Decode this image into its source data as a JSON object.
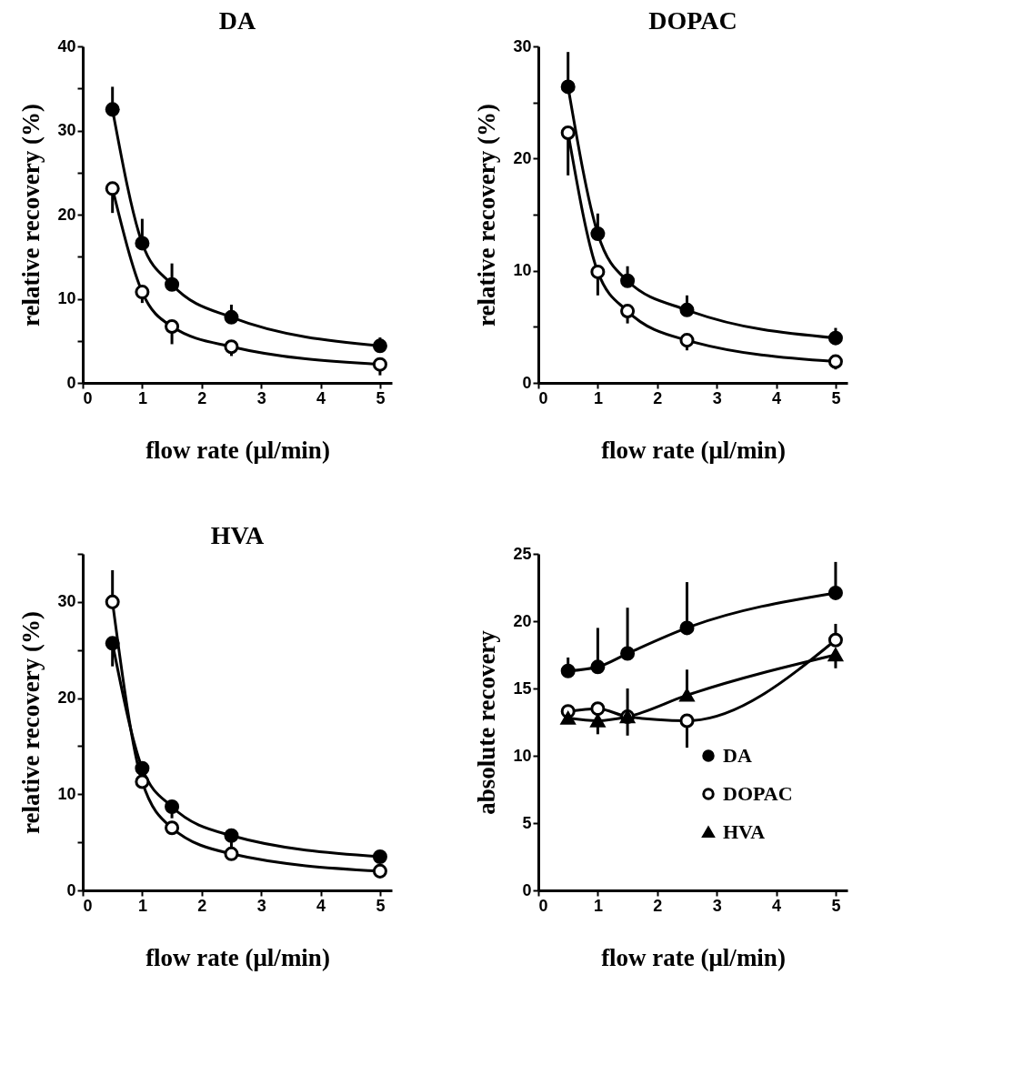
{
  "chart_data": [
    {
      "type": "line",
      "title": "DA",
      "xlabel": "flow rate (μl/min)",
      "ylabel": "relative recovery (%)",
      "xlim": [
        0,
        5.2
      ],
      "xticks": [
        0,
        1,
        2,
        3,
        4,
        5
      ],
      "ylim": [
        0,
        40
      ],
      "yticks": [
        0,
        {
          "value": 5,
          "label": null
        },
        10,
        {
          "value": 15,
          "label": null
        },
        20,
        {
          "value": 25,
          "label": null
        },
        30,
        {
          "value": 35,
          "label": null
        },
        40
      ],
      "grid": false,
      "x": [
        0.5,
        1,
        1.5,
        2.5,
        5
      ],
      "series": [
        {
          "color": "#000000",
          "marker": "circle",
          "values": [
            32.5,
            16.6,
            11.7,
            7.8,
            4.4
          ],
          "errors": [
            [
              32.5,
              35.2
            ],
            [
              16.6,
              19.5
            ],
            [
              11.7,
              14.2
            ],
            [
              7.8,
              9.3
            ],
            [
              4.4,
              5.4
            ]
          ]
        },
        {
          "color": "#000000",
          "marker": "circle",
          "values": [
            23.1,
            10.8,
            6.7,
            4.3,
            2.2
          ],
          "errors": [
            [
              20.2,
              23.1
            ],
            [
              9.5,
              10.8
            ],
            [
              4.6,
              6.7
            ],
            [
              3.2,
              4.3
            ],
            [
              0.9,
              2.2
            ]
          ]
        }
      ]
    },
    {
      "type": "line",
      "title": "DOPAC",
      "xlabel": "flow rate (μl/min)",
      "ylabel": "relative recovery (%)",
      "xlim": [
        0,
        5.2
      ],
      "xticks": [
        0,
        1,
        2,
        3,
        4,
        5
      ],
      "ylim": [
        0,
        30
      ],
      "yticks": [
        0,
        {
          "value": 5,
          "label": null
        },
        10,
        {
          "value": 15,
          "label": null
        },
        20,
        {
          "value": 25,
          "label": null
        },
        30
      ],
      "grid": false,
      "x": [
        0.5,
        1,
        1.5,
        2.5,
        5
      ],
      "series": [
        {
          "color": "#000000",
          "marker": "circle",
          "values": [
            26.4,
            13.3,
            9.1,
            6.5,
            4.0
          ],
          "errors": [
            [
              26.4,
              29.5
            ],
            [
              13.3,
              15.1
            ],
            [
              9.1,
              10.4
            ],
            [
              6.5,
              7.8
            ],
            [
              4.0,
              4.9
            ]
          ]
        },
        {
          "color": "#000000",
          "marker": "circle",
          "values": [
            22.3,
            9.9,
            6.4,
            3.8,
            1.9
          ],
          "errors": [
            [
              18.5,
              22.3
            ],
            [
              7.8,
              9.9
            ],
            [
              5.3,
              6.4
            ],
            [
              2.9,
              3.8
            ],
            [
              1.2,
              1.9
            ]
          ]
        }
      ]
    },
    {
      "type": "line",
      "title": "HVA",
      "xlabel": "flow rate (μl/min)",
      "ylabel": "relative recovery (%)",
      "xlim": [
        0,
        5.2
      ],
      "xticks": [
        0,
        1,
        2,
        3,
        4,
        5
      ],
      "ylim": [
        0,
        35
      ],
      "yticks": [
        0,
        {
          "value": 5,
          "label": null
        },
        10,
        {
          "value": 15,
          "label": null
        },
        20,
        {
          "value": 25,
          "label": null
        },
        30,
        {
          "value": 35,
          "label": null
        }
      ],
      "grid": false,
      "x": [
        0.5,
        1,
        1.5,
        2.5,
        5
      ],
      "series": [
        {
          "color": "#000000",
          "marker": "circle",
          "values": [
            25.7,
            12.7,
            8.7,
            5.7,
            3.5
          ],
          "errors": [
            [
              23.3,
              25.7
            ],
            null,
            [
              7.5,
              8.7
            ],
            [
              4.5,
              5.7
            ],
            null
          ]
        },
        {
          "color": "#000000",
          "marker": "circle",
          "values": [
            30.0,
            11.3,
            6.5,
            3.8,
            2.0
          ],
          "errors": [
            [
              30.0,
              33.3
            ],
            null,
            null,
            null,
            null
          ]
        }
      ]
    },
    {
      "type": "line",
      "ylabel": "absolute recovery",
      "xlabel": "flow rate (μl/min)",
      "xlim": [
        0,
        5.2
      ],
      "xticks": [
        0,
        1,
        2,
        3,
        4,
        5
      ],
      "ylim": [
        0,
        25
      ],
      "yticks": [
        0,
        5,
        10,
        15,
        20,
        25
      ],
      "grid": false,
      "legend": "bottom right",
      "x": [
        0.5,
        1,
        1.5,
        2.5,
        5
      ],
      "series": [
        {
          "name": "DA",
          "color": "#000000",
          "marker": "circle",
          "values": [
            16.3,
            16.6,
            17.6,
            19.5,
            22.1
          ],
          "errors": [
            [
              16.3,
              17.3
            ],
            [
              16.6,
              19.5
            ],
            [
              17.6,
              21.0
            ],
            [
              19.5,
              22.9
            ],
            [
              22.1,
              24.4
            ]
          ]
        },
        {
          "name": "DOPAC",
          "color": "#000000",
          "marker": "circle",
          "values": [
            13.3,
            13.5,
            12.9,
            12.6,
            18.6
          ],
          "errors": [
            null,
            null,
            null,
            [
              10.6,
              12.6
            ],
            [
              18.6,
              19.8
            ]
          ]
        },
        {
          "name": "HVA",
          "color": "#000000",
          "marker": "triangle",
          "values": [
            12.8,
            12.6,
            12.9,
            14.5,
            17.5
          ],
          "errors": [
            null,
            [
              11.6,
              12.6
            ],
            [
              11.5,
              15.0
            ],
            [
              14.5,
              16.4
            ],
            [
              16.5,
              17.5
            ]
          ]
        }
      ]
    }
  ]
}
